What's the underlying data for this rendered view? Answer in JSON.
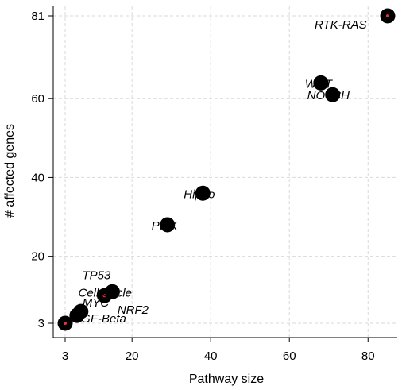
{
  "chart_data": {
    "type": "scatter",
    "title": "",
    "xlabel": "Pathway size",
    "ylabel": "# affected genes",
    "xlim": [
      3,
      85
    ],
    "ylim": [
      3,
      81
    ],
    "x_ticks": [
      3,
      20,
      40,
      60,
      80
    ],
    "y_ticks": [
      3,
      20,
      40,
      60,
      81
    ],
    "x_tick_labels": [
      "3",
      "20",
      "40",
      "60",
      "80"
    ],
    "y_tick_labels": [
      "3",
      "20",
      "40",
      "60",
      "81"
    ],
    "grid": true,
    "marker_color": "#000000",
    "highlight_color": "#e8313a",
    "points": [
      {
        "label": "RTK-RAS",
        "x": 85,
        "y": 81,
        "highlight": true,
        "label_dx": -92,
        "label_dy": 16
      },
      {
        "label": "WNT",
        "x": 68,
        "y": 64,
        "highlight": false,
        "label_dx": -20,
        "label_dy": 6
      },
      {
        "label": "NOTCH",
        "x": 71,
        "y": 61,
        "highlight": false,
        "label_dx": -32,
        "label_dy": 6
      },
      {
        "label": "Hippo",
        "x": 38,
        "y": 36,
        "highlight": false,
        "label_dx": -24,
        "label_dy": 6
      },
      {
        "label": "PI3K",
        "x": 29,
        "y": 28,
        "highlight": false,
        "label_dx": -20,
        "label_dy": 6
      },
      {
        "label": "TP53",
        "x": 15,
        "y": 11,
        "highlight": false,
        "label_dx": -38,
        "label_dy": -16
      },
      {
        "label": "Cell Cycle",
        "x": 13,
        "y": 10,
        "highlight": true,
        "label_dx": -33,
        "label_dy": 1
      },
      {
        "label": "MYC",
        "x": 7,
        "y": 6,
        "highlight": false,
        "label_dx": 2,
        "label_dy": -6
      },
      {
        "label": "NRF2",
        "x": 6,
        "y": 5,
        "highlight": false,
        "label_dx": 51,
        "label_dy": -2
      },
      {
        "label": "TGF-Beta",
        "x": 3,
        "y": 3,
        "highlight": true,
        "label_dx": 11,
        "label_dy": -1
      }
    ]
  }
}
